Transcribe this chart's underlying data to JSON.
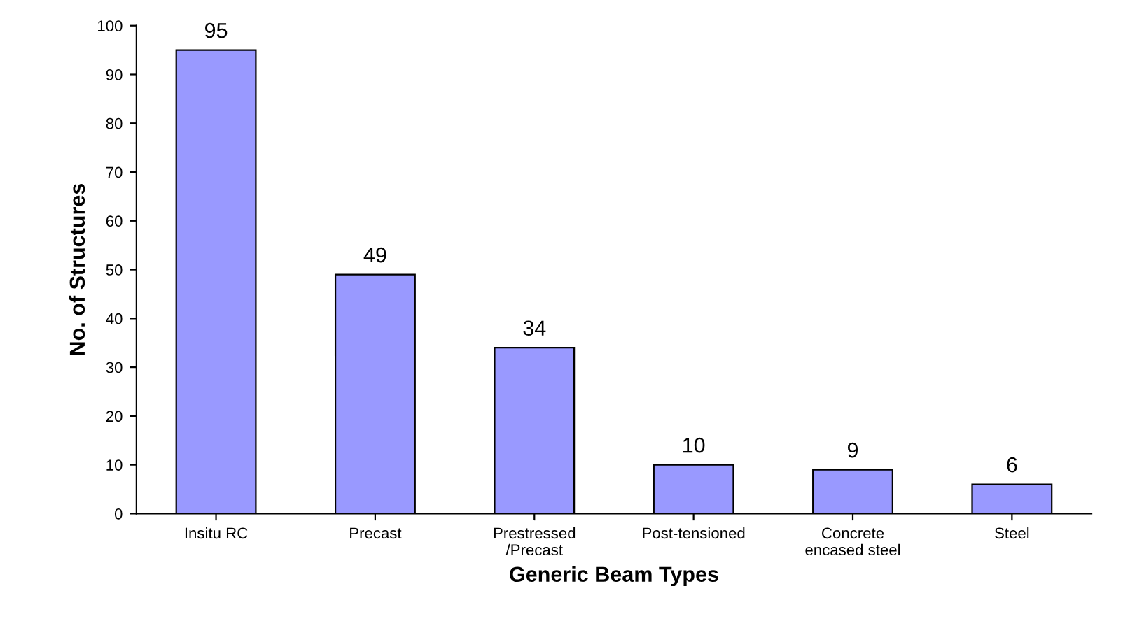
{
  "chart_data": {
    "type": "bar",
    "xlabel": "Generic Beam Types",
    "ylabel": "No. of Structures",
    "categories": [
      "Insitu RC",
      "Precast",
      "Prestressed\n/Precast",
      "Post-tensioned",
      "Concrete\nencased steel",
      "Steel"
    ],
    "values": [
      95,
      49,
      34,
      10,
      9,
      6
    ],
    "color": "#9999ff",
    "ylim": [
      0,
      100
    ],
    "yticks": [
      0,
      10,
      20,
      30,
      40,
      50,
      60,
      70,
      80,
      90,
      100
    ],
    "data_labels": true,
    "grid": false,
    "legend": false
  }
}
